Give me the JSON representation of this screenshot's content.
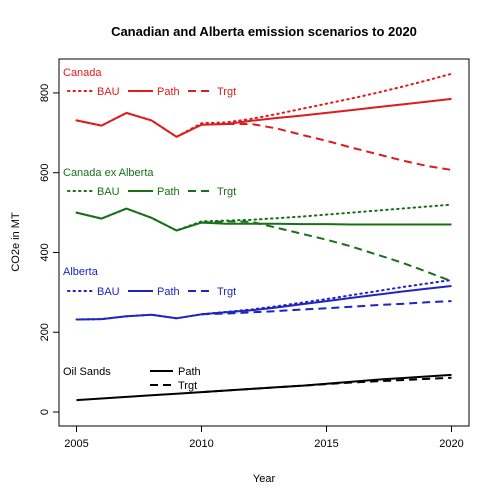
{
  "chart_data": {
    "type": "line",
    "title": "Canadian and Alberta emission scenarios to 2020",
    "xlabel": "Year",
    "ylabel": "CO2e in MT",
    "xlim": [
      2004.3,
      2020.7
    ],
    "ylim": [
      -35,
      885
    ],
    "xticks": [
      2005,
      2010,
      2015,
      2020
    ],
    "yticks": [
      0,
      200,
      400,
      600,
      800
    ],
    "grid": false,
    "groups": [
      {
        "label": "Canada",
        "color": "#dd1c1c",
        "legend": [
          "BAU",
          "Path",
          "Trgt"
        ],
        "series": [
          {
            "name": "BAU",
            "style": "dotted",
            "x": [
              2005,
              2006,
              2007,
              2008,
              2009,
              2010,
              2011,
              2012,
              2013,
              2014,
              2015,
              2016,
              2017,
              2018,
              2019,
              2020
            ],
            "y": [
              731,
              718,
              750,
              731,
              690,
              724,
              726,
              735,
              747,
              760,
              773,
              786,
              800,
              815,
              831,
              848
            ]
          },
          {
            "name": "Path",
            "style": "solid",
            "x": [
              2005,
              2006,
              2007,
              2008,
              2009,
              2010,
              2011,
              2012,
              2013,
              2014,
              2015,
              2016,
              2017,
              2018,
              2019,
              2020
            ],
            "y": [
              731,
              718,
              750,
              731,
              690,
              720,
              722,
              730,
              737,
              743,
              750,
              757,
              764,
              771,
              778,
              785
            ]
          },
          {
            "name": "Trgt",
            "style": "dashed",
            "x": [
              2011,
              2012,
              2013,
              2014,
              2015,
              2016,
              2017,
              2018,
              2019,
              2020
            ],
            "y": [
              722,
              722,
              711,
              695,
              680,
              663,
              647,
              631,
              617,
              607
            ]
          }
        ]
      },
      {
        "label": "Canada ex Alberta",
        "color": "#187018",
        "legend": [
          "BAU",
          "Path",
          "Trgt"
        ],
        "series": [
          {
            "name": "BAU",
            "style": "dotted",
            "x": [
              2005,
              2006,
              2007,
              2008,
              2009,
              2010,
              2011,
              2012,
              2013,
              2014,
              2015,
              2016,
              2017,
              2018,
              2019,
              2020
            ],
            "y": [
              500,
              485,
              510,
              487,
              455,
              478,
              480,
              482,
              486,
              490,
              495,
              500,
              505,
              510,
              515,
              520
            ]
          },
          {
            "name": "Path",
            "style": "solid",
            "x": [
              2005,
              2006,
              2007,
              2008,
              2009,
              2010,
              2011,
              2012,
              2013,
              2014,
              2015,
              2016,
              2017,
              2018,
              2019,
              2020
            ],
            "y": [
              500,
              485,
              510,
              487,
              455,
              475,
              472,
              472,
              472,
              471,
              471,
              470,
              470,
              470,
              470,
              470
            ]
          },
          {
            "name": "Trgt",
            "style": "dashed",
            "x": [
              2010,
              2011,
              2012,
              2013,
              2014,
              2015,
              2016,
              2017,
              2018,
              2019,
              2020
            ],
            "y": [
              475,
              478,
              477,
              462,
              447,
              432,
              415,
              395,
              375,
              352,
              328
            ]
          }
        ]
      },
      {
        "label": "Alberta",
        "color": "#1f24c2",
        "legend": [
          "BAU",
          "Path",
          "Trgt"
        ],
        "series": [
          {
            "name": "BAU",
            "style": "dotted",
            "x": [
              2005,
              2006,
              2007,
              2008,
              2009,
              2010,
              2011,
              2012,
              2013,
              2014,
              2015,
              2016,
              2017,
              2018,
              2019,
              2020
            ],
            "y": [
              232,
              233,
              240,
              244,
              235,
              245,
              251,
              257,
              265,
              274,
              283,
              293,
              303,
              313,
              322,
              331
            ]
          },
          {
            "name": "Path",
            "style": "solid",
            "x": [
              2005,
              2006,
              2007,
              2008,
              2009,
              2010,
              2011,
              2012,
              2013,
              2014,
              2015,
              2016,
              2017,
              2018,
              2019,
              2020
            ],
            "y": [
              232,
              233,
              240,
              244,
              235,
              245,
              250,
              255,
              262,
              270,
              278,
              286,
              294,
              302,
              309,
              316
            ]
          },
          {
            "name": "Trgt",
            "style": "dashed",
            "x": [
              2010,
              2011,
              2012,
              2013,
              2014,
              2015,
              2016,
              2017,
              2018,
              2019,
              2020
            ],
            "y": [
              245,
              247,
              250,
              253,
              257,
              260,
              264,
              268,
              271,
              275,
              278
            ]
          }
        ]
      },
      {
        "label": "Oil Sands",
        "color": "#000000",
        "legend": [
          "Path",
          "Trgt"
        ],
        "series": [
          {
            "name": "Path",
            "style": "solid",
            "x": [
              2005,
              2006,
              2007,
              2008,
              2009,
              2010,
              2011,
              2012,
              2013,
              2014,
              2015,
              2016,
              2017,
              2018,
              2019,
              2020
            ],
            "y": [
              30,
              34,
              38,
              42,
              46,
              50,
              54,
              58,
              62,
              66,
              71,
              76,
              81,
              85,
              89,
              93
            ]
          },
          {
            "name": "Trgt",
            "style": "dashed",
            "x": [
              2010,
              2011,
              2012,
              2013,
              2014,
              2015,
              2016,
              2017,
              2018,
              2019,
              2020
            ],
            "y": [
              50,
              54,
              58,
              62,
              66,
              70,
              74,
              77,
              80,
              83,
              86
            ]
          }
        ]
      }
    ]
  }
}
